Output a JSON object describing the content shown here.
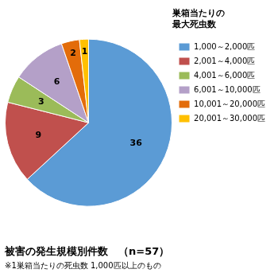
{
  "chart_data": {
    "type": "pie",
    "title": "被害の発生規模別件数　（n=57）",
    "subtitle": "※1巣箱当たりの死虫数 1,000匹以上のもの",
    "legend_title": [
      "巣箱当たりの",
      "最大死虫数"
    ],
    "categories": [
      "1,000～2,000匹",
      "2,001～4,000匹",
      "4,001～6,000匹",
      "6,001～10,000匹",
      "10,001～20,000匹",
      "20,001～30,000匹"
    ],
    "values": [
      36,
      9,
      3,
      6,
      2,
      1
    ],
    "colors": [
      "#5B9BD5",
      "#C0504D",
      "#9BBB59",
      "#B4A0C8",
      "#E36C0A",
      "#FFC000"
    ],
    "data_labels": true,
    "legend": "right"
  }
}
